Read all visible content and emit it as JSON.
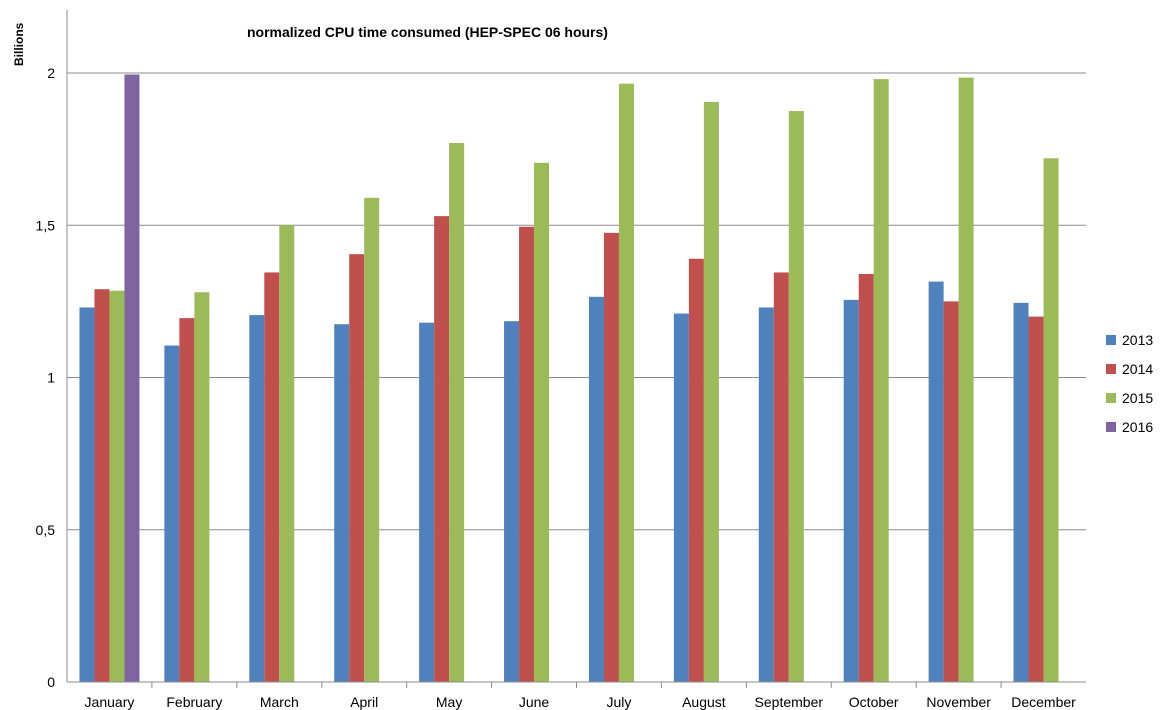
{
  "chart_data": {
    "type": "bar",
    "title": "normalized CPU time consumed (HEP-SPEC 06 hours)",
    "xlabel": "",
    "ylabel": "Billions",
    "ylim": [
      0,
      2
    ],
    "yticks": [
      "0",
      "0,5",
      "1",
      "1,5",
      "2"
    ],
    "ytick_values": [
      0,
      0.5,
      1,
      1.5,
      2
    ],
    "grid": true,
    "legend_position": "right",
    "categories": [
      "January",
      "February",
      "March",
      "April",
      "May",
      "June",
      "July",
      "August",
      "September",
      "October",
      "November",
      "December"
    ],
    "series": [
      {
        "name": "2013",
        "color": "#4f81bd",
        "values": [
          1.23,
          1.105,
          1.205,
          1.175,
          1.18,
          1.185,
          1.265,
          1.21,
          1.23,
          1.255,
          1.315,
          1.245
        ]
      },
      {
        "name": "2014",
        "color": "#c0504d",
        "values": [
          1.29,
          1.195,
          1.345,
          1.405,
          1.53,
          1.495,
          1.475,
          1.39,
          1.345,
          1.34,
          1.25,
          1.2
        ]
      },
      {
        "name": "2015",
        "color": "#9bbb59",
        "values": [
          1.285,
          1.28,
          1.5,
          1.59,
          1.77,
          1.705,
          1.965,
          1.905,
          1.875,
          1.98,
          1.985,
          1.72
        ]
      },
      {
        "name": "2016",
        "color": "#8064a2",
        "values": [
          1.995,
          null,
          null,
          null,
          null,
          null,
          null,
          null,
          null,
          null,
          null,
          null
        ]
      }
    ]
  }
}
